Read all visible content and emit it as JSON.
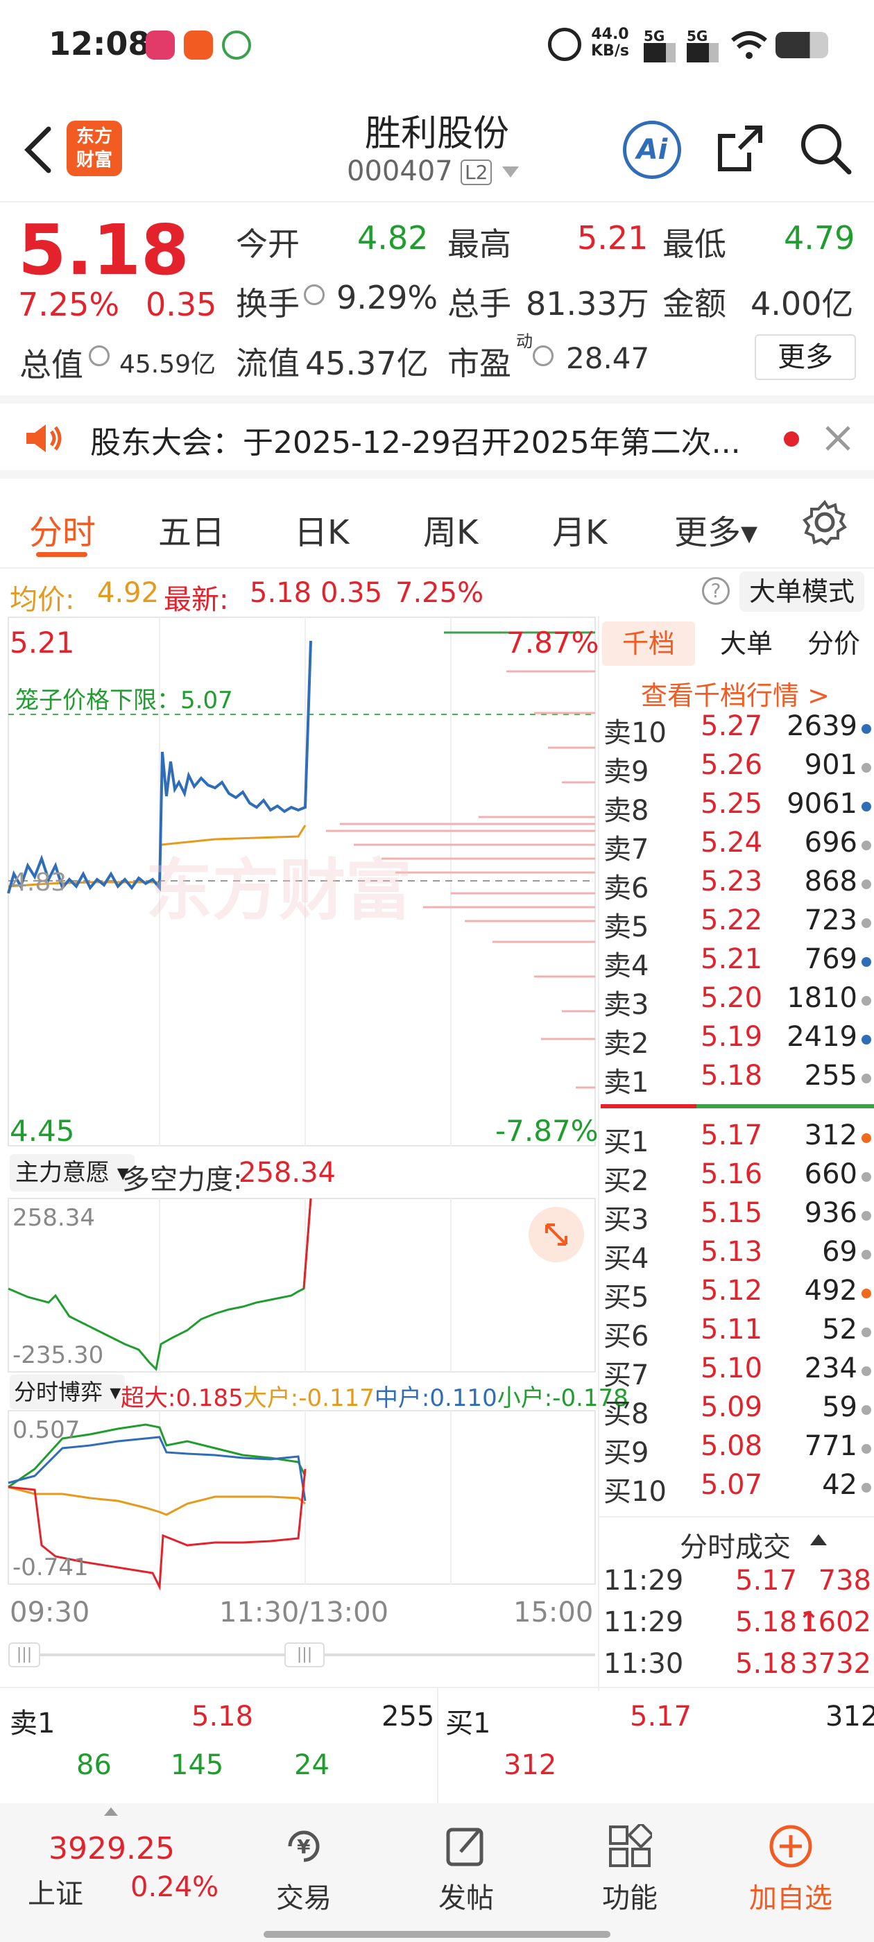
{
  "status": {
    "time": "12:08",
    "net_speed": "44.0",
    "net_unit": "KB/s",
    "sig1": "5G",
    "sig2": "5G"
  },
  "header": {
    "title": "胜利股份",
    "code": "000407",
    "level": "L2",
    "ai_label": "Ai"
  },
  "quote": {
    "price": "5.18",
    "pct": "7.25%",
    "change": "0.35",
    "open_label": "今开",
    "open": "4.82",
    "high_label": "最高",
    "high": "5.21",
    "low_label": "最低",
    "low": "4.79",
    "turnover_label": "换手",
    "turnover": "9.29%",
    "volume_label": "总手",
    "volume": "81.33万",
    "amount_label": "金额",
    "amount": "4.00亿",
    "mktcap_label": "总值",
    "mktcap": "45.59亿",
    "float_label": "流值",
    "float": "45.37亿",
    "pe_label": "市盈",
    "pe_sup": "动",
    "pe": "28.47",
    "more_button": "更多"
  },
  "notice": {
    "text": "股东大会：于2025-12-29召开2025年第二次..."
  },
  "tabs": [
    {
      "label": "分时"
    },
    {
      "label": "五日"
    },
    {
      "label": "日K"
    },
    {
      "label": "周K"
    },
    {
      "label": "月K"
    },
    {
      "label": "更多▾"
    }
  ],
  "avgline": {
    "avg_label": "均价:",
    "avg": "4.92",
    "last_label": "最新:",
    "last": "5.18",
    "chg": "0.35",
    "pct": "7.25%",
    "mode_button": "大单模式"
  },
  "chart": {
    "top_price": "5.21",
    "top_pct": "7.87%",
    "bottom_price": "4.45",
    "bottom_pct": "-7.87%",
    "mid_price": "4.83",
    "limit_label": "笼子价格下限：5.07",
    "watermark": "东方财富",
    "sub1_select": "主力意愿",
    "sub1_label": "多空力度:",
    "sub1_value": "258.34",
    "sub1_max": "258.34",
    "sub1_min": "-235.30",
    "sub2_select": "分时博弈",
    "sub2_items": [
      {
        "label": "超大:",
        "value": "0.185",
        "color": "#e4222c"
      },
      {
        "label": "大户:",
        "value": "-0.117",
        "color": "#e69a1c"
      },
      {
        "label": "中户:",
        "value": "0.110",
        "color": "#2f6db8"
      },
      {
        "label": "小户:",
        "value": "-0.178",
        "color": "#1f9d2e"
      }
    ],
    "sub2_max": "0.507",
    "sub2_min": "-0.741",
    "time_start": "09:30",
    "time_mid": "11:30/13:00",
    "time_end": "15:00"
  },
  "panel": {
    "tabs": [
      {
        "label": "千档"
      },
      {
        "label": "大单"
      },
      {
        "label": "分价"
      }
    ],
    "link": "查看千档行情 >",
    "asks": [
      {
        "label": "卖10",
        "price": "5.27",
        "vol": "2639",
        "dot": "#2f6db8"
      },
      {
        "label": "卖9",
        "price": "5.26",
        "vol": "901",
        "dot": "#aaa"
      },
      {
        "label": "卖8",
        "price": "5.25",
        "vol": "9061",
        "dot": "#2f6db8"
      },
      {
        "label": "卖7",
        "price": "5.24",
        "vol": "696",
        "dot": "#aaa"
      },
      {
        "label": "卖6",
        "price": "5.23",
        "vol": "868",
        "dot": "#aaa"
      },
      {
        "label": "卖5",
        "price": "5.22",
        "vol": "723",
        "dot": "#aaa"
      },
      {
        "label": "卖4",
        "price": "5.21",
        "vol": "769",
        "dot": "#2f6db8"
      },
      {
        "label": "卖3",
        "price": "5.20",
        "vol": "1810",
        "dot": "#aaa"
      },
      {
        "label": "卖2",
        "price": "5.19",
        "vol": "2419",
        "dot": "#2f6db8"
      },
      {
        "label": "卖1",
        "price": "5.18",
        "vol": "255",
        "dot": "#aaa"
      }
    ],
    "bids": [
      {
        "label": "买1",
        "price": "5.17",
        "vol": "312",
        "dot": "#f06a1c"
      },
      {
        "label": "买2",
        "price": "5.16",
        "vol": "660",
        "dot": "#aaa"
      },
      {
        "label": "买3",
        "price": "5.15",
        "vol": "936",
        "dot": "#aaa"
      },
      {
        "label": "买4",
        "price": "5.13",
        "vol": "69",
        "dot": "#aaa"
      },
      {
        "label": "买5",
        "price": "5.12",
        "vol": "492",
        "dot": "#f06a1c"
      },
      {
        "label": "买6",
        "price": "5.11",
        "vol": "52",
        "dot": "#aaa"
      },
      {
        "label": "买7",
        "price": "5.10",
        "vol": "234",
        "dot": "#aaa"
      },
      {
        "label": "买8",
        "price": "5.09",
        "vol": "59",
        "dot": "#aaa"
      },
      {
        "label": "买9",
        "price": "5.08",
        "vol": "771",
        "dot": "#aaa"
      },
      {
        "label": "买10",
        "price": "5.07",
        "vol": "42",
        "dot": "#aaa"
      }
    ],
    "trades_title": "分时成交",
    "trades": [
      {
        "time": "11:29",
        "price": "5.17",
        "vol": "738",
        "pcolor": "#e4222c",
        "vcolor": "#e4222c"
      },
      {
        "time": "11:29",
        "price": "5.18↑",
        "vol": "1602",
        "pcolor": "#e4222c",
        "vcolor": "#e4222c"
      },
      {
        "time": "11:30",
        "price": "5.18",
        "vol": "3732",
        "pcolor": "#e4222c",
        "vcolor": "#e4222c"
      }
    ]
  },
  "bottomq": {
    "ask_label": "卖1",
    "ask_price": "5.18",
    "ask_vol": "255",
    "ask_parts": [
      "86",
      "145",
      "24"
    ],
    "bid_label": "买1",
    "bid_price": "5.17",
    "bid_vol": "312",
    "bid_parts": [
      "312"
    ]
  },
  "nav": {
    "index_value": "3929.25",
    "index_name": "上证",
    "index_pct": "0.24%",
    "items": [
      {
        "label": "交易"
      },
      {
        "label": "发帖"
      },
      {
        "label": "功能"
      },
      {
        "label": "加自选"
      }
    ]
  }
}
